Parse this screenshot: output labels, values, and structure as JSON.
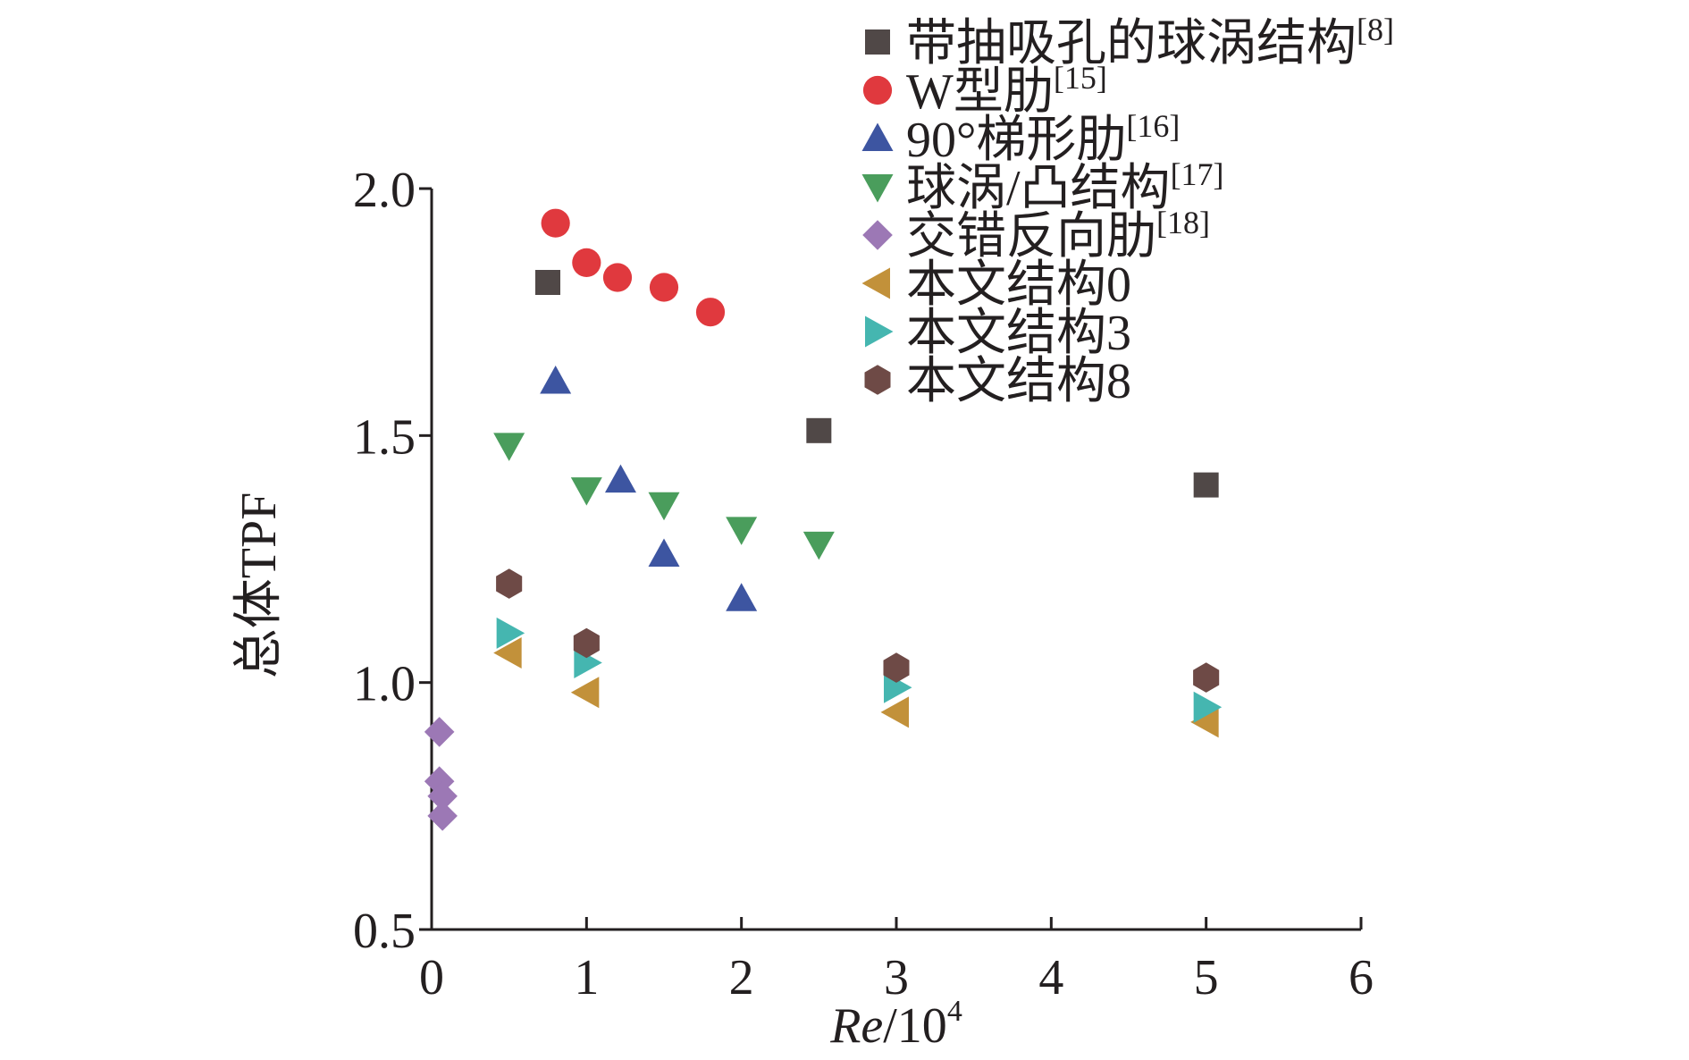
{
  "chart_data": {
    "type": "scatter",
    "title": "",
    "xlabel_italic": "Re",
    "xlabel_rest": "/10",
    "xlabel_sup": "4",
    "ylabel": "总体TPF",
    "xlim": [
      0,
      6
    ],
    "ylim": [
      0.5,
      2.0
    ],
    "xticks": [
      0,
      1,
      2,
      3,
      4,
      5,
      6
    ],
    "yticks": [
      0.5,
      1.0,
      1.5,
      2.0
    ],
    "xtick_labels": [
      "0",
      "1",
      "2",
      "3",
      "4",
      "5",
      "6"
    ],
    "ytick_labels": [
      "0.5",
      "1.0",
      "1.5",
      "2.0"
    ],
    "grid": false,
    "legend_position": "top-right",
    "series": [
      {
        "name": "带抽吸孔的球涡结构",
        "ref": "[8]",
        "marker": "square",
        "color": "#504847",
        "points": [
          [
            0.75,
            1.81
          ],
          [
            2.5,
            1.51
          ],
          [
            5.0,
            1.4
          ]
        ]
      },
      {
        "name": "W型肋",
        "ref": "[15]",
        "marker": "circle",
        "color": "#e0393e",
        "points": [
          [
            0.8,
            1.93
          ],
          [
            1.0,
            1.85
          ],
          [
            1.2,
            1.82
          ],
          [
            1.5,
            1.8
          ],
          [
            1.8,
            1.75
          ]
        ]
      },
      {
        "name": " 90°梯形肋",
        "ref": "[16]",
        "marker": "triangle-up",
        "color": "#3d55a1",
        "points": [
          [
            0.8,
            1.61
          ],
          [
            1.22,
            1.41
          ],
          [
            1.5,
            1.26
          ],
          [
            2.0,
            1.17
          ]
        ]
      },
      {
        "name": "球涡/凸结构",
        "ref": "[17]",
        "marker": "triangle-down",
        "color": "#4a9d5c",
        "points": [
          [
            0.5,
            1.48
          ],
          [
            1.0,
            1.39
          ],
          [
            1.5,
            1.36
          ],
          [
            2.0,
            1.31
          ],
          [
            2.5,
            1.28
          ]
        ]
      },
      {
        "name": "交错反向肋",
        "ref": "[18]",
        "marker": "diamond",
        "color": "#9c78b5",
        "points": [
          [
            0.05,
            0.9
          ],
          [
            0.05,
            0.8
          ],
          [
            0.07,
            0.77
          ],
          [
            0.07,
            0.73
          ]
        ]
      },
      {
        "name": "本文结构0",
        "ref": "",
        "marker": "triangle-left",
        "color": "#c2913a",
        "points": [
          [
            0.5,
            1.06
          ],
          [
            1.0,
            0.98
          ],
          [
            3.0,
            0.94
          ],
          [
            5.0,
            0.92
          ]
        ]
      },
      {
        "name": "本文结构3",
        "ref": "",
        "marker": "triangle-right",
        "color": "#45b6b0",
        "points": [
          [
            0.5,
            1.1
          ],
          [
            1.0,
            1.04
          ],
          [
            3.0,
            0.99
          ],
          [
            5.0,
            0.95
          ]
        ]
      },
      {
        "name": "本文结构8",
        "ref": "",
        "marker": "hexagon",
        "color": "#6e4a46",
        "points": [
          [
            0.5,
            1.2
          ],
          [
            1.0,
            1.08
          ],
          [
            3.0,
            1.03
          ],
          [
            5.0,
            1.01
          ]
        ]
      }
    ]
  }
}
